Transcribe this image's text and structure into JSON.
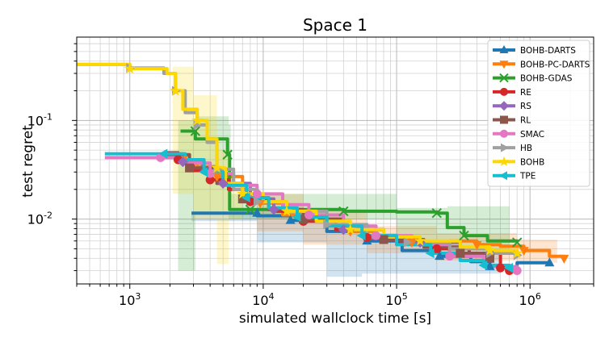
{
  "chart_data": {
    "type": "line",
    "title": "Space 1",
    "xlabel": "simulated wallclock time [s]",
    "ylabel": "test regret",
    "xscale": "log",
    "yscale": "log",
    "xlim": [
      400,
      3000000
    ],
    "ylim": [
      0.0022,
      0.7
    ],
    "x_ticks": [
      {
        "exp": "3",
        "value": 1000
      },
      {
        "exp": "4",
        "value": 10000
      },
      {
        "exp": "5",
        "value": 100000
      },
      {
        "exp": "6",
        "value": 1000000
      }
    ],
    "y_ticks": [
      {
        "exp": "-2",
        "value": 0.01
      },
      {
        "exp": "-1",
        "value": 0.1
      }
    ],
    "tick_base": "10",
    "grid": true,
    "legend_position": "top-right",
    "series": [
      {
        "name": "BOHB-DARTS",
        "color": "#1f77b4",
        "marker": "^",
        "points": [
          [
            2900,
            0.0115
          ],
          [
            9000,
            0.0115
          ],
          [
            9000,
            0.0108
          ],
          [
            16000,
            0.0097
          ],
          [
            30000,
            0.0075
          ],
          [
            60000,
            0.006
          ],
          [
            110000,
            0.0048
          ],
          [
            210000,
            0.0042
          ],
          [
            360000,
            0.0037
          ],
          [
            500000,
            0.0033
          ],
          [
            800000,
            0.0036
          ],
          [
            1400000,
            0.0036
          ]
        ],
        "band": [
          [
            2900,
            0.0115,
            0.0115
          ],
          [
            9000,
            0.0095,
            0.012
          ],
          [
            30000,
            0.0058,
            0.0085
          ],
          [
            55000,
            0.0026,
            0.0072
          ],
          [
            100000,
            0.0028,
            0.0058
          ],
          [
            300000,
            0.0028,
            0.0045
          ],
          [
            600000,
            0.0028,
            0.0042
          ]
        ]
      },
      {
        "name": "BOHB-PC-DARTS",
        "color": "#ff7f0e",
        "marker": "v",
        "points": [
          [
            1800,
            0.042
          ],
          [
            2500,
            0.04
          ],
          [
            3200,
            0.034
          ],
          [
            4500,
            0.027
          ],
          [
            7000,
            0.018
          ],
          [
            9500,
            0.0145
          ],
          [
            14000,
            0.011
          ],
          [
            20000,
            0.01
          ],
          [
            30000,
            0.0085
          ],
          [
            45000,
            0.0075
          ],
          [
            70000,
            0.0065
          ],
          [
            130000,
            0.0058
          ],
          [
            250000,
            0.006
          ],
          [
            400000,
            0.0055
          ],
          [
            600000,
            0.0053
          ],
          [
            900000,
            0.0048
          ],
          [
            1400000,
            0.0042
          ],
          [
            1800000,
            0.004
          ]
        ],
        "band": [
          [
            9000,
            0.01,
            0.018
          ],
          [
            20000,
            0.0075,
            0.0125
          ],
          [
            60000,
            0.0055,
            0.0085
          ],
          [
            200000,
            0.0045,
            0.0072
          ],
          [
            800000,
            0.0038,
            0.0062
          ],
          [
            1600000,
            0.0036,
            0.006
          ]
        ]
      },
      {
        "name": "BOHB-GDAS",
        "color": "#2ca02c",
        "marker": "x",
        "points": [
          [
            2400,
            0.078
          ],
          [
            3100,
            0.078
          ],
          [
            3100,
            0.065
          ],
          [
            5400,
            0.045
          ],
          [
            5600,
            0.0125
          ],
          [
            8000,
            0.0125
          ],
          [
            16000,
            0.0125
          ],
          [
            40000,
            0.012
          ],
          [
            100000,
            0.0118
          ],
          [
            200000,
            0.0115
          ],
          [
            240000,
            0.0082
          ],
          [
            320000,
            0.0068
          ],
          [
            480000,
            0.006
          ],
          [
            800000,
            0.0058
          ]
        ],
        "band": [
          [
            2300,
            0.012,
            0.1
          ],
          [
            3100,
            0.003,
            0.11
          ],
          [
            5500,
            0.0115,
            0.09
          ],
          [
            5700,
            0.01,
            0.018
          ],
          [
            100000,
            0.01,
            0.013
          ],
          [
            240000,
            0.0055,
            0.0135
          ],
          [
            700000,
            0.0045,
            0.0065
          ]
        ]
      },
      {
        "name": "RE",
        "color": "#d62728",
        "marker": "o",
        "points": [
          [
            1800,
            0.047
          ],
          [
            2300,
            0.04
          ],
          [
            3000,
            0.031
          ],
          [
            4000,
            0.025
          ],
          [
            5500,
            0.02
          ],
          [
            8000,
            0.015
          ],
          [
            12000,
            0.012
          ],
          [
            20000,
            0.0095
          ],
          [
            35000,
            0.0078
          ],
          [
            60000,
            0.0065
          ],
          [
            100000,
            0.0056
          ],
          [
            200000,
            0.005
          ],
          [
            350000,
            0.0045
          ],
          [
            600000,
            0.0032
          ],
          [
            700000,
            0.003
          ]
        ]
      },
      {
        "name": "RS",
        "color": "#9467bd",
        "marker": "D",
        "points": [
          [
            1800,
            0.046
          ],
          [
            2500,
            0.038
          ],
          [
            3500,
            0.03
          ],
          [
            5000,
            0.023
          ],
          [
            8000,
            0.016
          ],
          [
            12000,
            0.0125
          ],
          [
            20000,
            0.01
          ],
          [
            40000,
            0.0078
          ],
          [
            80000,
            0.0064
          ],
          [
            150000,
            0.0058
          ],
          [
            300000,
            0.005
          ],
          [
            500000,
            0.0045
          ]
        ]
      },
      {
        "name": "RL",
        "color": "#8c564b",
        "marker": "s",
        "points": [
          [
            1800,
            0.045
          ],
          [
            2800,
            0.033
          ],
          [
            4500,
            0.023
          ],
          [
            7000,
            0.016
          ],
          [
            11000,
            0.0125
          ],
          [
            20000,
            0.01
          ],
          [
            40000,
            0.0078
          ],
          [
            80000,
            0.0062
          ],
          [
            160000,
            0.0052
          ],
          [
            300000,
            0.0045
          ],
          [
            500000,
            0.004
          ]
        ]
      },
      {
        "name": "SMAC",
        "color": "#e377c2",
        "marker": "o",
        "points": [
          [
            650,
            0.042
          ],
          [
            1700,
            0.042
          ],
          [
            2600,
            0.037
          ],
          [
            4000,
            0.029
          ],
          [
            6000,
            0.022
          ],
          [
            9000,
            0.018
          ],
          [
            14000,
            0.014
          ],
          [
            22000,
            0.011
          ],
          [
            40000,
            0.0085
          ],
          [
            70000,
            0.0068
          ],
          [
            130000,
            0.0055
          ],
          [
            250000,
            0.0042
          ],
          [
            450000,
            0.0033
          ],
          [
            800000,
            0.003
          ]
        ]
      },
      {
        "name": "HB",
        "color": "#a0a0a0",
        "marker": ">",
        "points": [
          [
            400,
            0.37
          ],
          [
            1000,
            0.34
          ],
          [
            1800,
            0.3
          ],
          [
            2200,
            0.2
          ],
          [
            2600,
            0.12
          ],
          [
            3200,
            0.09
          ],
          [
            3800,
            0.06
          ],
          [
            4500,
            0.032
          ],
          [
            6000,
            0.02
          ],
          [
            9000,
            0.015
          ],
          [
            15000,
            0.012
          ],
          [
            30000,
            0.0088
          ],
          [
            60000,
            0.0066
          ],
          [
            120000,
            0.0058
          ],
          [
            250000,
            0.005
          ],
          [
            500000,
            0.0045
          ],
          [
            800000,
            0.0043
          ]
        ]
      },
      {
        "name": "BOHB",
        "color": "#ffd700",
        "marker": "*",
        "points": [
          [
            400,
            0.37
          ],
          [
            1000,
            0.335
          ],
          [
            1900,
            0.3
          ],
          [
            2200,
            0.2
          ],
          [
            2500,
            0.13
          ],
          [
            3200,
            0.1
          ],
          [
            3800,
            0.065
          ],
          [
            4500,
            0.033
          ],
          [
            5200,
            0.023
          ],
          [
            7000,
            0.018
          ],
          [
            10000,
            0.015
          ],
          [
            15000,
            0.012
          ],
          [
            25000,
            0.0095
          ],
          [
            45000,
            0.0078
          ],
          [
            80000,
            0.0066
          ],
          [
            150000,
            0.006
          ],
          [
            300000,
            0.0052
          ],
          [
            500000,
            0.0048
          ],
          [
            800000,
            0.0045
          ]
        ],
        "band": [
          [
            2100,
            0.02,
            0.35
          ],
          [
            3000,
            0.018,
            0.18
          ],
          [
            4500,
            0.01,
            0.05
          ],
          [
            5500,
            0.0035,
            0.02
          ],
          [
            7000,
            0.01,
            0.025
          ]
        ]
      },
      {
        "name": "TPE",
        "color": "#17becf",
        "marker": "<",
        "points": [
          [
            650,
            0.046
          ],
          [
            1800,
            0.046
          ],
          [
            2600,
            0.04
          ],
          [
            3600,
            0.03
          ],
          [
            5000,
            0.022
          ],
          [
            7500,
            0.0165
          ],
          [
            11000,
            0.013
          ],
          [
            18000,
            0.0105
          ],
          [
            30000,
            0.0085
          ],
          [
            55000,
            0.0068
          ],
          [
            100000,
            0.0055
          ],
          [
            180000,
            0.0045
          ],
          [
            300000,
            0.0038
          ],
          [
            450000,
            0.0034
          ],
          [
            700000,
            0.0032
          ]
        ]
      }
    ]
  }
}
